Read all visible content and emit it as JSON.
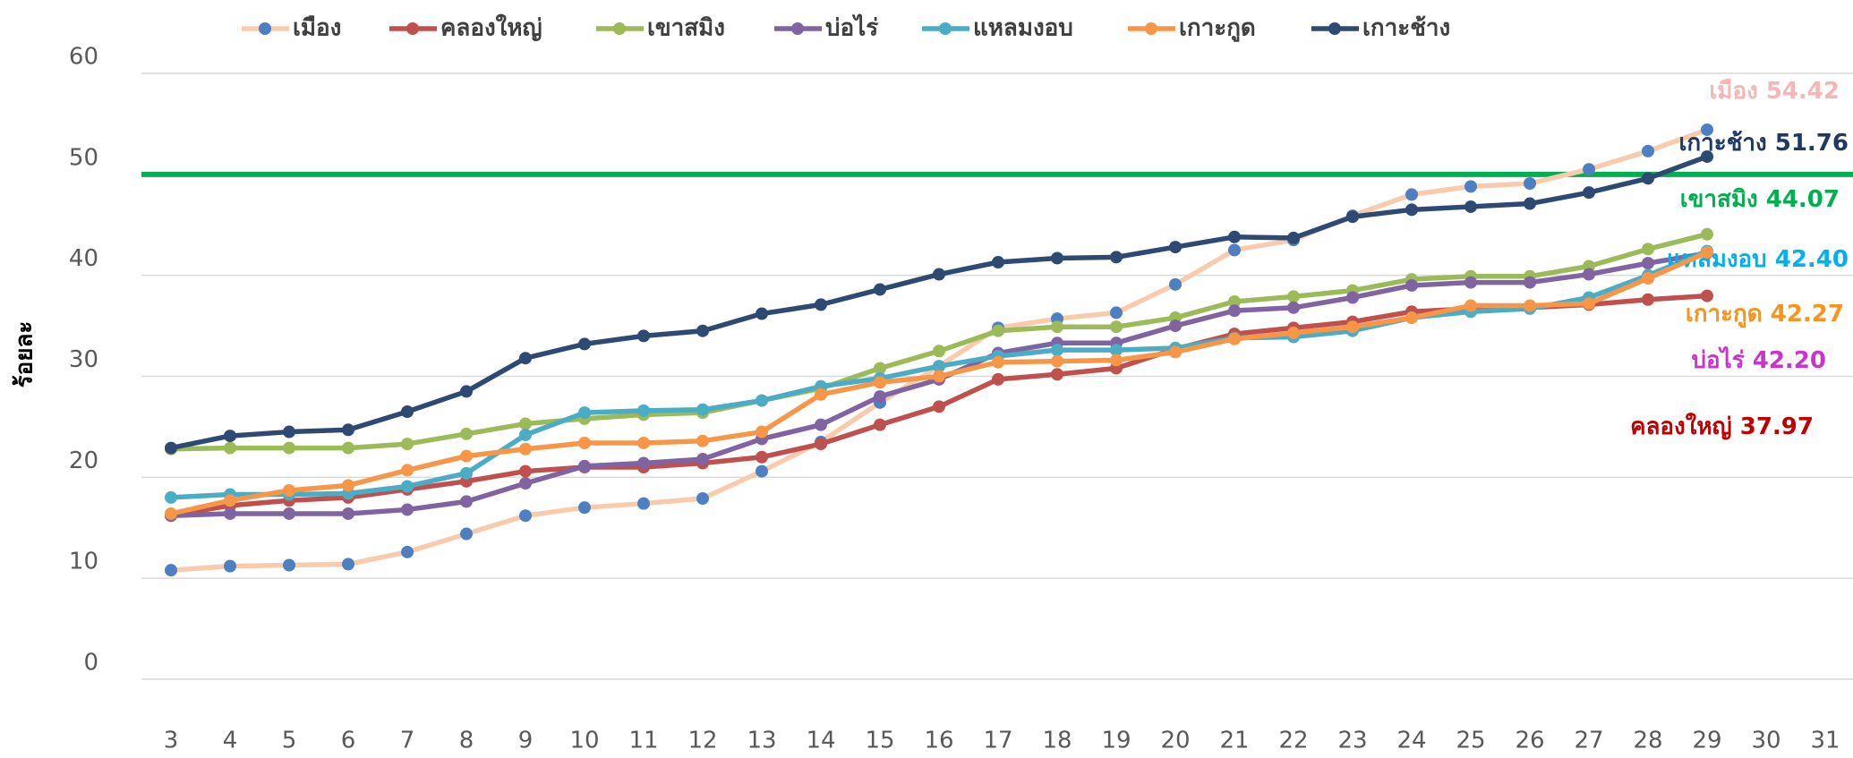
{
  "chart_data": {
    "type": "line",
    "y_label": "ร้อยละ",
    "categories": [
      "3",
      "4",
      "5",
      "6",
      "7",
      "8",
      "9",
      "10",
      "11",
      "12",
      "13",
      "14",
      "15",
      "16",
      "17",
      "18",
      "19",
      "20",
      "21",
      "22",
      "23",
      "24",
      "25",
      "26",
      "27",
      "28",
      "29",
      "30",
      "31"
    ],
    "ylim": [
      0,
      60
    ],
    "yticks": [
      0,
      10,
      20,
      30,
      40,
      50,
      60
    ],
    "grid": true,
    "legend": "top",
    "reference_line": {
      "value": 50,
      "color": "#00b050"
    },
    "series": [
      {
        "name": "เมือง",
        "color": "#f8cbad",
        "marker_color": "#4e80c1",
        "label_color": "#f4b6b6",
        "end_label": "54.42",
        "values": [
          10.8,
          11.2,
          11.3,
          11.4,
          12.6,
          14.4,
          16.2,
          17.0,
          17.4,
          17.9,
          20.6,
          23.5,
          27.4,
          31.0,
          34.8,
          35.7,
          36.3,
          39.1,
          42.5,
          43.5,
          45.9,
          48.0,
          48.8,
          49.1,
          50.5,
          52.3,
          54.42,
          null,
          null
        ]
      },
      {
        "name": "คลองใหญ่",
        "color": "#c0504d",
        "marker_color": "#c0504d",
        "label_color": "#c00000",
        "end_label": "37.97",
        "values": [
          16.2,
          17.2,
          17.7,
          18.0,
          18.8,
          19.6,
          20.6,
          21.0,
          21.0,
          21.4,
          22.0,
          23.3,
          25.2,
          27.0,
          29.7,
          30.2,
          30.8,
          32.7,
          34.2,
          34.8,
          35.4,
          36.4,
          36.7,
          36.8,
          37.1,
          37.6,
          37.97,
          null,
          null
        ]
      },
      {
        "name": "เขาสมิง",
        "color": "#9bbb59",
        "marker_color": "#9bbb59",
        "label_color": "#00b050",
        "end_label": "44.07",
        "values": [
          22.8,
          22.9,
          22.9,
          22.9,
          23.3,
          24.3,
          25.3,
          25.8,
          26.2,
          26.4,
          27.6,
          28.8,
          30.8,
          32.5,
          34.5,
          34.9,
          34.9,
          35.8,
          37.4,
          37.9,
          38.5,
          39.6,
          39.9,
          39.9,
          40.9,
          42.6,
          44.07,
          null,
          null
        ]
      },
      {
        "name": "บ่อไร่",
        "color": "#8064a2",
        "marker_color": "#8064a2",
        "label_color": "#cc33cc",
        "end_label": "42.20",
        "values": [
          16.2,
          16.4,
          16.4,
          16.4,
          16.8,
          17.6,
          19.4,
          21.1,
          21.4,
          21.8,
          23.8,
          25.2,
          28.0,
          29.7,
          32.3,
          33.3,
          33.3,
          35.0,
          36.5,
          36.8,
          37.8,
          39.0,
          39.3,
          39.3,
          40.1,
          41.2,
          42.2,
          null,
          null
        ]
      },
      {
        "name": "แหลมงอบ",
        "color": "#4bacc6",
        "marker_color": "#4bacc6",
        "label_color": "#00b0f0",
        "end_label": "42.40",
        "values": [
          18.0,
          18.3,
          18.3,
          18.4,
          19.1,
          20.4,
          24.2,
          26.4,
          26.6,
          26.7,
          27.6,
          29.0,
          29.8,
          31.0,
          32.0,
          32.6,
          32.6,
          32.8,
          33.8,
          33.9,
          34.5,
          35.8,
          36.4,
          36.7,
          37.8,
          40.0,
          42.4,
          null,
          null
        ]
      },
      {
        "name": "เกาะกูด",
        "color": "#f79646",
        "marker_color": "#f79646",
        "label_color": "#f7941d",
        "end_label": "42.27",
        "values": [
          16.4,
          17.7,
          18.7,
          19.2,
          20.7,
          22.1,
          22.8,
          23.4,
          23.4,
          23.6,
          24.5,
          28.2,
          29.4,
          30.0,
          31.4,
          31.5,
          31.6,
          32.4,
          33.7,
          34.3,
          34.9,
          35.8,
          37.0,
          37.0,
          37.2,
          39.7,
          42.27,
          null,
          null
        ]
      },
      {
        "name": "เกาะช้าง",
        "color": "#2e4a73",
        "marker_color": "#2e4a73",
        "label_color": "#1f3864",
        "end_label": "51.76",
        "values": [
          22.9,
          24.1,
          24.5,
          24.7,
          26.5,
          28.5,
          31.8,
          33.2,
          34.0,
          34.5,
          36.2,
          37.1,
          38.6,
          40.1,
          41.3,
          41.7,
          41.8,
          42.8,
          43.8,
          43.7,
          45.8,
          46.5,
          46.8,
          47.1,
          48.2,
          49.6,
          51.76,
          null,
          null
        ]
      }
    ]
  }
}
